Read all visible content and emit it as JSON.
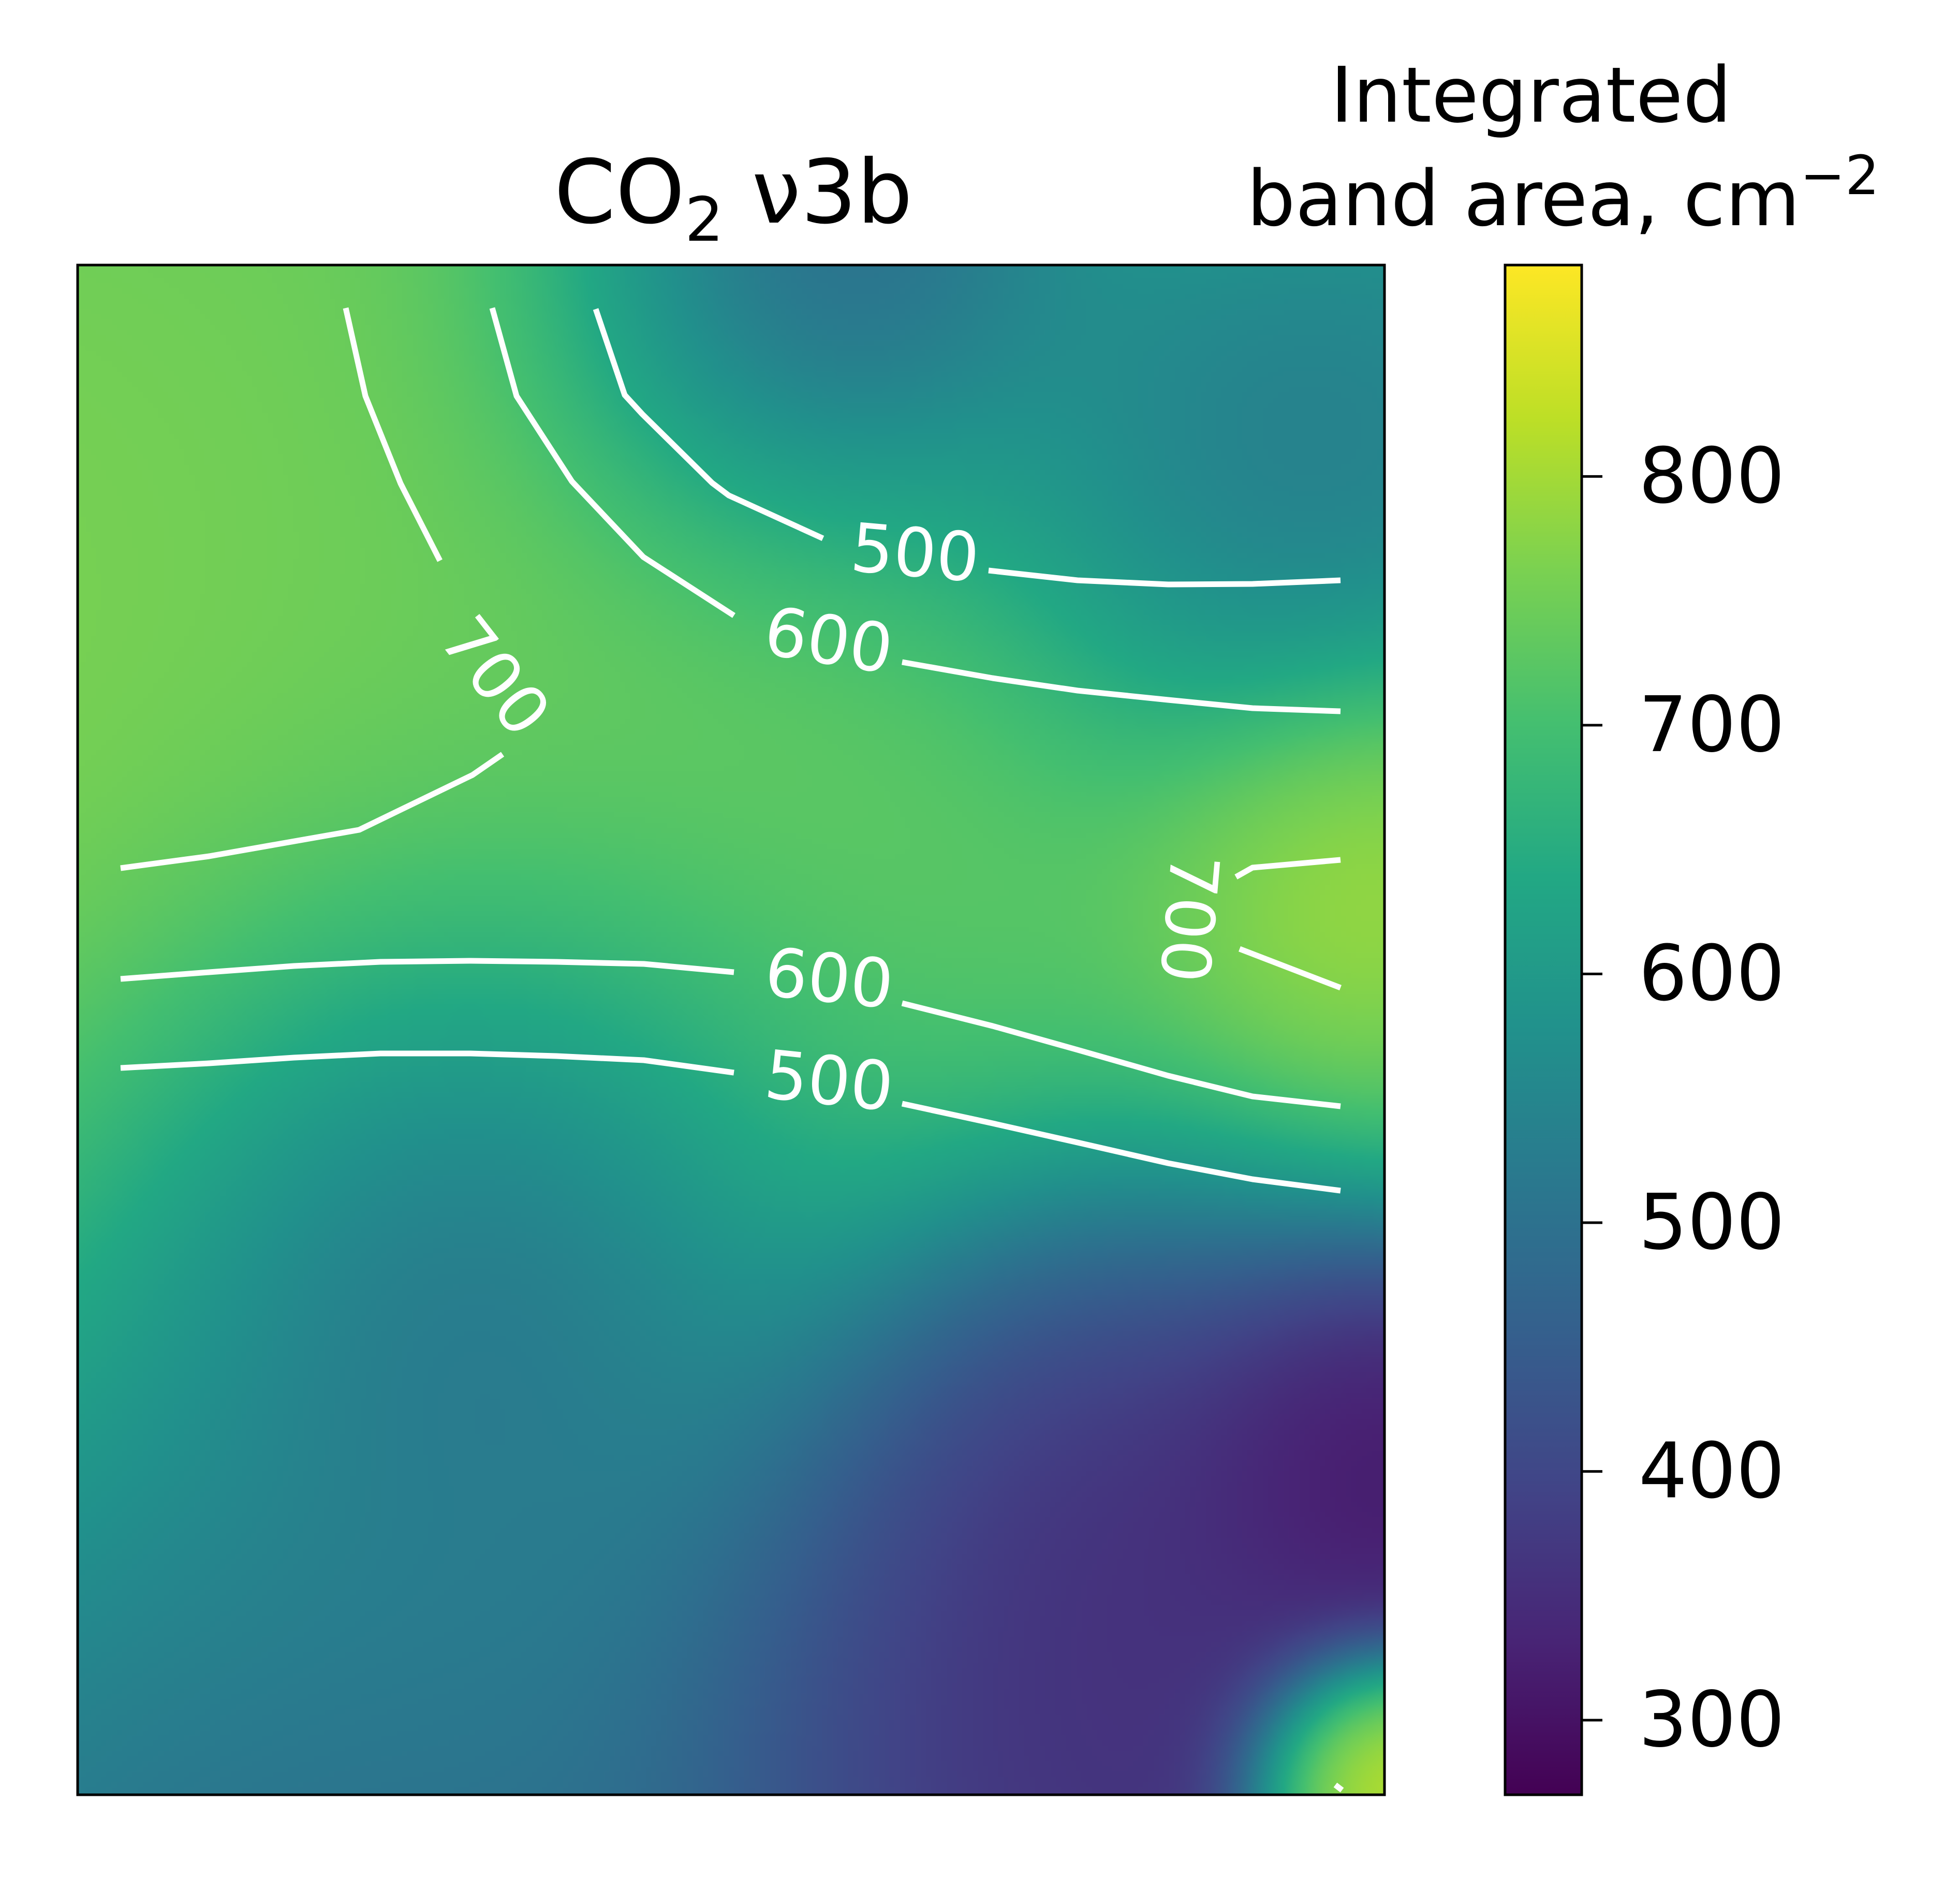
{
  "chart_data": {
    "type": "heatmap",
    "title": {
      "prefix": "CO",
      "subscript": "2",
      "suffix": " ν3b"
    },
    "colorbar": {
      "label_line1": "Integrated",
      "label_line2": "band area, cm",
      "label_superscript": "−2",
      "vmin": 270,
      "vmax": 885,
      "ticks": [
        300,
        400,
        500,
        600,
        700,
        800
      ],
      "colormap": "viridis"
    },
    "axes": {
      "xticks": "none",
      "yticks": "none",
      "grid": false
    },
    "contour_levels": [
      500,
      600,
      700
    ],
    "contour_labels": [
      "500",
      "600",
      "700",
      "600",
      "500",
      "700",
      "700"
    ],
    "contour_color": "#ffffff",
    "field_sources": [
      {
        "x": 0.03,
        "y": 0.4,
        "v": 800,
        "r": 0.4
      },
      {
        "x": 0.3,
        "y": 0.27,
        "v": 740,
        "r": 0.35
      },
      {
        "x": 0.55,
        "y": 0.35,
        "v": 720,
        "r": 0.26
      },
      {
        "x": 0.96,
        "y": 0.4,
        "v": 830,
        "r": 0.09
      },
      {
        "x": 0.99,
        "y": 0.99,
        "v": 885,
        "r": 0.05
      },
      {
        "x": 0.56,
        "y": 0.03,
        "v": 280,
        "r": 0.12
      },
      {
        "x": 0.3,
        "y": 0.62,
        "v": 290,
        "r": 0.15
      },
      {
        "x": 0.75,
        "y": 0.75,
        "v": 290,
        "r": 0.12
      },
      {
        "x": 0.97,
        "y": 0.77,
        "v": 280,
        "r": 0.08
      },
      {
        "x": 0.7,
        "y": 0.9,
        "v": 320,
        "r": 0.15
      },
      {
        "x": 0.18,
        "y": 0.88,
        "v": 440,
        "r": 0.25
      },
      {
        "x": 0.86,
        "y": 0.15,
        "v": 450,
        "r": 0.12
      }
    ],
    "field_background": 380
  }
}
